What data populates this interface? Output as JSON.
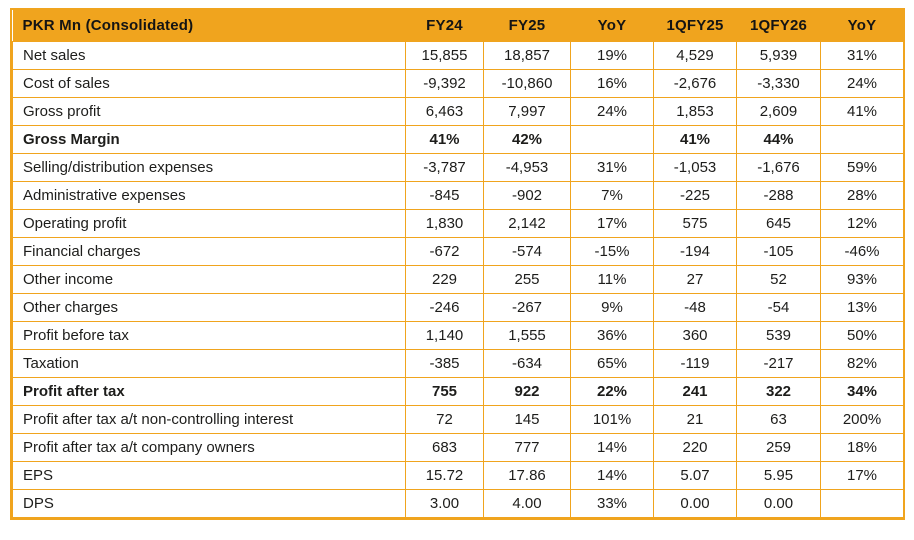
{
  "styles": {
    "header_background": "#f0a41e",
    "grid_border_color": "#f0a41e",
    "text_color": "#1d1d1b",
    "page_background": "#ffffff"
  },
  "chart_data": {
    "type": "table",
    "title": "PKR Mn (Consolidated)",
    "columns": [
      "PKR Mn (Consolidated)",
      "FY24",
      "FY25",
      "YoY",
      "1QFY25",
      "1QFY26",
      "YoY"
    ],
    "rows": [
      {
        "label": "Net sales",
        "values": [
          "15,855",
          "18,857",
          "19%",
          "4,529",
          "5,939",
          "31%"
        ],
        "bold": false
      },
      {
        "label": "Cost of sales",
        "values": [
          "-9,392",
          "-10,860",
          "16%",
          "-2,676",
          "-3,330",
          "24%"
        ],
        "bold": false
      },
      {
        "label": "Gross profit",
        "values": [
          "6,463",
          "7,997",
          "24%",
          "1,853",
          "2,609",
          "41%"
        ],
        "bold": false
      },
      {
        "label": "Gross Margin",
        "values": [
          "41%",
          "42%",
          "",
          "41%",
          "44%",
          ""
        ],
        "bold": true
      },
      {
        "label": "Selling/distribution expenses",
        "values": [
          "-3,787",
          "-4,953",
          "31%",
          "-1,053",
          "-1,676",
          "59%"
        ],
        "bold": false
      },
      {
        "label": "Administrative expenses",
        "values": [
          "-845",
          "-902",
          "7%",
          "-225",
          "-288",
          "28%"
        ],
        "bold": false
      },
      {
        "label": "Operating profit",
        "values": [
          "1,830",
          "2,142",
          "17%",
          "575",
          "645",
          "12%"
        ],
        "bold": false
      },
      {
        "label": "Financial charges",
        "values": [
          "-672",
          "-574",
          "-15%",
          "-194",
          "-105",
          "-46%"
        ],
        "bold": false
      },
      {
        "label": "Other income",
        "values": [
          "229",
          "255",
          "11%",
          "27",
          "52",
          "93%"
        ],
        "bold": false
      },
      {
        "label": "Other charges",
        "values": [
          "-246",
          "-267",
          "9%",
          "-48",
          "-54",
          "13%"
        ],
        "bold": false
      },
      {
        "label": "Profit before tax",
        "values": [
          "1,140",
          "1,555",
          "36%",
          "360",
          "539",
          "50%"
        ],
        "bold": false
      },
      {
        "label": "Taxation",
        "values": [
          "-385",
          "-634",
          "65%",
          "-119",
          "-217",
          "82%"
        ],
        "bold": false
      },
      {
        "label": "Profit after tax",
        "values": [
          "755",
          "922",
          "22%",
          "241",
          "322",
          "34%"
        ],
        "bold": true
      },
      {
        "label": "Profit after tax a/t non-controlling interest",
        "values": [
          "72",
          "145",
          "101%",
          "21",
          "63",
          "200%"
        ],
        "bold": false
      },
      {
        "label": "Profit after tax a/t company owners",
        "values": [
          "683",
          "777",
          "14%",
          "220",
          "259",
          "18%"
        ],
        "bold": false
      },
      {
        "label": "EPS",
        "values": [
          "15.72",
          "17.86",
          "14%",
          "5.07",
          "5.95",
          "17%"
        ],
        "bold": false
      },
      {
        "label": "DPS",
        "values": [
          "3.00",
          "4.00",
          "33%",
          "0.00",
          "0.00",
          ""
        ],
        "bold": false
      }
    ]
  }
}
